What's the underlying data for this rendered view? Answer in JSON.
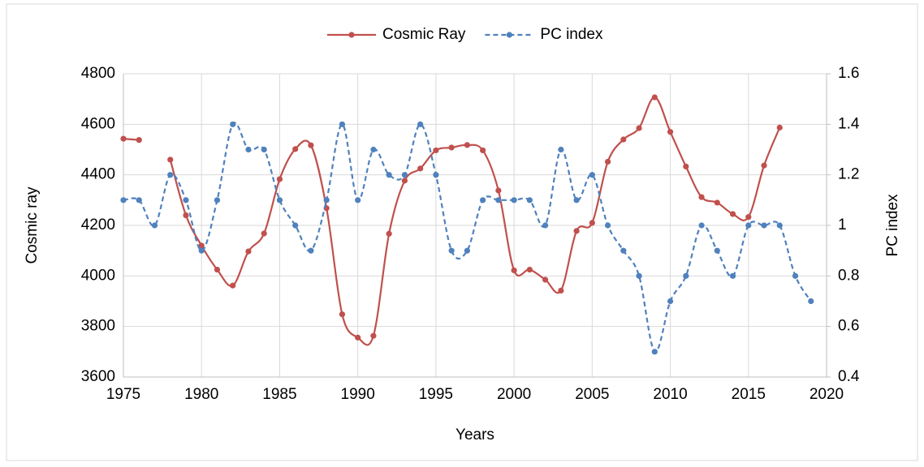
{
  "chart_data": {
    "type": "line",
    "x_label": "Years",
    "y_label": "Cosmic ray",
    "y2_label": "PC index",
    "x": [
      1975,
      1976,
      1977,
      1978,
      1979,
      1980,
      1981,
      1982,
      1983,
      1984,
      1985,
      1986,
      1987,
      1988,
      1989,
      1990,
      1991,
      1992,
      1993,
      1994,
      1995,
      1996,
      1997,
      1998,
      1999,
      2000,
      2001,
      2002,
      2003,
      2004,
      2005,
      2006,
      2007,
      2008,
      2009,
      2010,
      2011,
      2012,
      2013,
      2014,
      2015,
      2016,
      2017,
      2018,
      2019
    ],
    "series": [
      {
        "name": "Cosmic Ray",
        "color": "#c0504d",
        "dashed": false,
        "axis": "y",
        "values": [
          4543,
          4538,
          null,
          4460,
          4240,
          4120,
          4025,
          3962,
          4097,
          4168,
          4383,
          4502,
          4517,
          4268,
          3848,
          3756,
          3763,
          4167,
          4377,
          4425,
          4497,
          4508,
          4518,
          4497,
          4338,
          4022,
          4025,
          3985,
          3942,
          4178,
          4210,
          4452,
          4540,
          4585,
          4707,
          4570,
          4433,
          4312,
          4290,
          4245,
          4233,
          4437,
          4587,
          null,
          null
        ]
      },
      {
        "name": "PC index",
        "color": "#4f81bd",
        "dashed": true,
        "axis": "y2",
        "values": [
          1.1,
          1.1,
          1.0,
          1.2,
          1.1,
          0.9,
          1.1,
          1.4,
          1.3,
          1.3,
          1.1,
          1.0,
          0.9,
          1.1,
          1.4,
          1.1,
          1.3,
          1.2,
          1.2,
          1.4,
          1.2,
          0.9,
          0.9,
          1.1,
          1.1,
          1.1,
          1.1,
          1.0,
          1.3,
          1.1,
          1.2,
          1.0,
          0.9,
          0.8,
          0.5,
          0.7,
          0.8,
          1.0,
          0.9,
          0.8,
          1.0,
          1.0,
          1.0,
          0.8,
          0.7
        ]
      }
    ],
    "xlim": [
      1975,
      2020
    ],
    "xticks": [
      1975,
      1980,
      1985,
      1990,
      1995,
      2000,
      2005,
      2010,
      2015,
      2020
    ],
    "ylim": [
      3600,
      4800
    ],
    "yticks": [
      3600,
      3800,
      4000,
      4200,
      4400,
      4600,
      4800
    ],
    "y2lim": [
      0.4,
      1.6
    ],
    "y2ticks": [
      0.4,
      0.6,
      0.8,
      1,
      1.2,
      1.4,
      1.6
    ],
    "grid": true,
    "smooth": true,
    "legend": "top"
  }
}
